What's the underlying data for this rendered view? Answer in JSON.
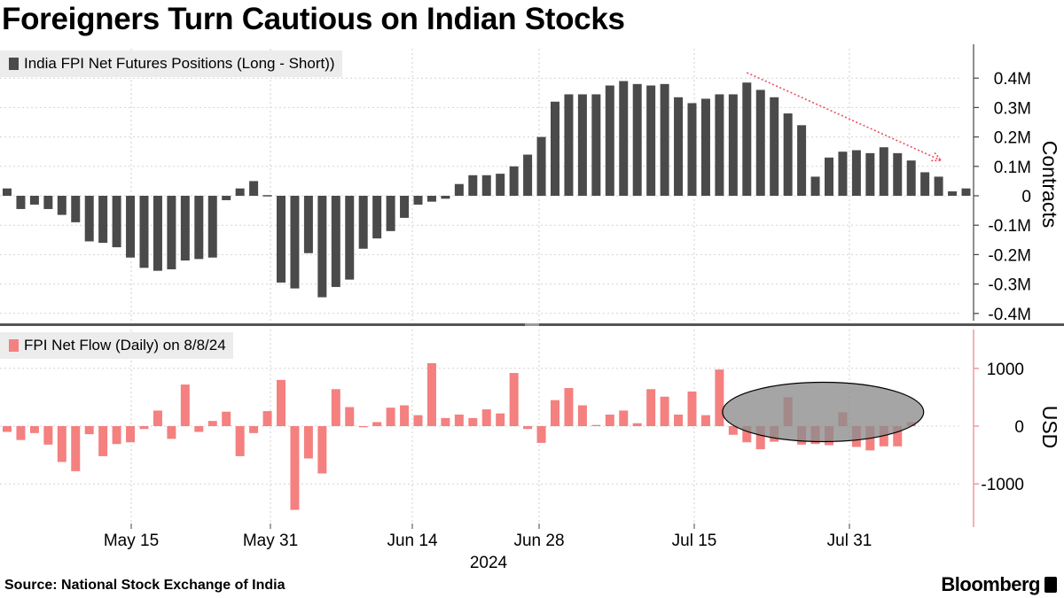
{
  "title": "Foreigners Turn Cautious on Indian Stocks",
  "source": "Source: National Stock Exchange of India",
  "brand": "Bloomberg",
  "colors": {
    "futures": "#4a4a4a",
    "flow": "#f48080",
    "arrow": "#e8505b",
    "highlight": "#8c8c8c",
    "axis": "#f0a0a0"
  },
  "chart_data": [
    {
      "type": "bar",
      "legend": "India FPI Net Futures Positions (Long - Short))",
      "ylabel": "Contracts",
      "ylim": [
        -0.4,
        0.4
      ],
      "y_ticks": [
        0.4,
        0.3,
        0.2,
        0.1,
        0,
        -0.1,
        -0.2,
        -0.3,
        -0.4
      ],
      "y_tick_labels": [
        "0.4M",
        "0.3M",
        "0.2M",
        "0.1M",
        "0",
        "-0.1M",
        "-0.2M",
        "-0.3M",
        "-0.4M"
      ],
      "unit": "million contracts",
      "values": [
        0.025,
        -0.045,
        -0.03,
        -0.045,
        -0.065,
        -0.09,
        -0.155,
        -0.16,
        -0.175,
        -0.21,
        -0.245,
        -0.255,
        -0.25,
        -0.22,
        -0.215,
        -0.21,
        -0.015,
        0.025,
        0.05,
        0.0,
        -0.295,
        -0.315,
        -0.195,
        -0.345,
        -0.31,
        -0.285,
        -0.18,
        -0.145,
        -0.12,
        -0.075,
        -0.03,
        -0.02,
        -0.01,
        0.04,
        0.07,
        0.07,
        0.075,
        0.1,
        0.14,
        0.2,
        0.32,
        0.345,
        0.345,
        0.345,
        0.375,
        0.39,
        0.38,
        0.375,
        0.38,
        0.335,
        0.315,
        0.33,
        0.345,
        0.345,
        0.385,
        0.36,
        0.335,
        0.28,
        0.24,
        0.065,
        0.13,
        0.15,
        0.155,
        0.145,
        0.165,
        0.145,
        0.12,
        0.08,
        0.065,
        0.015,
        0.025
      ],
      "annotations": [
        {
          "type": "trend-arrow",
          "direction": "down",
          "from_bar": 54,
          "to_bar": 67
        }
      ]
    },
    {
      "type": "bar",
      "legend": "FPI Net Flow (Daily) on 8/8/24",
      "ylabel": "USD",
      "ylim": [
        -1700,
        1700
      ],
      "y_ticks": [
        1000,
        0,
        -1000
      ],
      "y_tick_labels": [
        "1000",
        "0",
        "-1000"
      ],
      "values": [
        -100,
        -240,
        -120,
        -320,
        -620,
        -780,
        -140,
        -520,
        -310,
        -280,
        -50,
        270,
        -220,
        720,
        -100,
        90,
        250,
        -520,
        -120,
        260,
        800,
        -1450,
        -560,
        -820,
        640,
        330,
        -20,
        70,
        320,
        360,
        190,
        1090,
        140,
        200,
        140,
        290,
        220,
        920,
        -50,
        -290,
        450,
        660,
        360,
        20,
        200,
        270,
        50,
        640,
        510,
        200,
        600,
        190,
        980,
        -150,
        -280,
        -400,
        -270,
        500,
        -320,
        -310,
        -330,
        240,
        -360,
        -420,
        -350,
        -350,
        70
      ],
      "annotations": [
        {
          "type": "highlight-ellipse",
          "from_bar": 53,
          "to_bar": 66
        }
      ],
      "x_tick_labels": [
        "May 15",
        "May 31",
        "Jun 14",
        "Jun 28",
        "Jul 15",
        "Jul 31"
      ],
      "x_year": "2024"
    }
  ]
}
